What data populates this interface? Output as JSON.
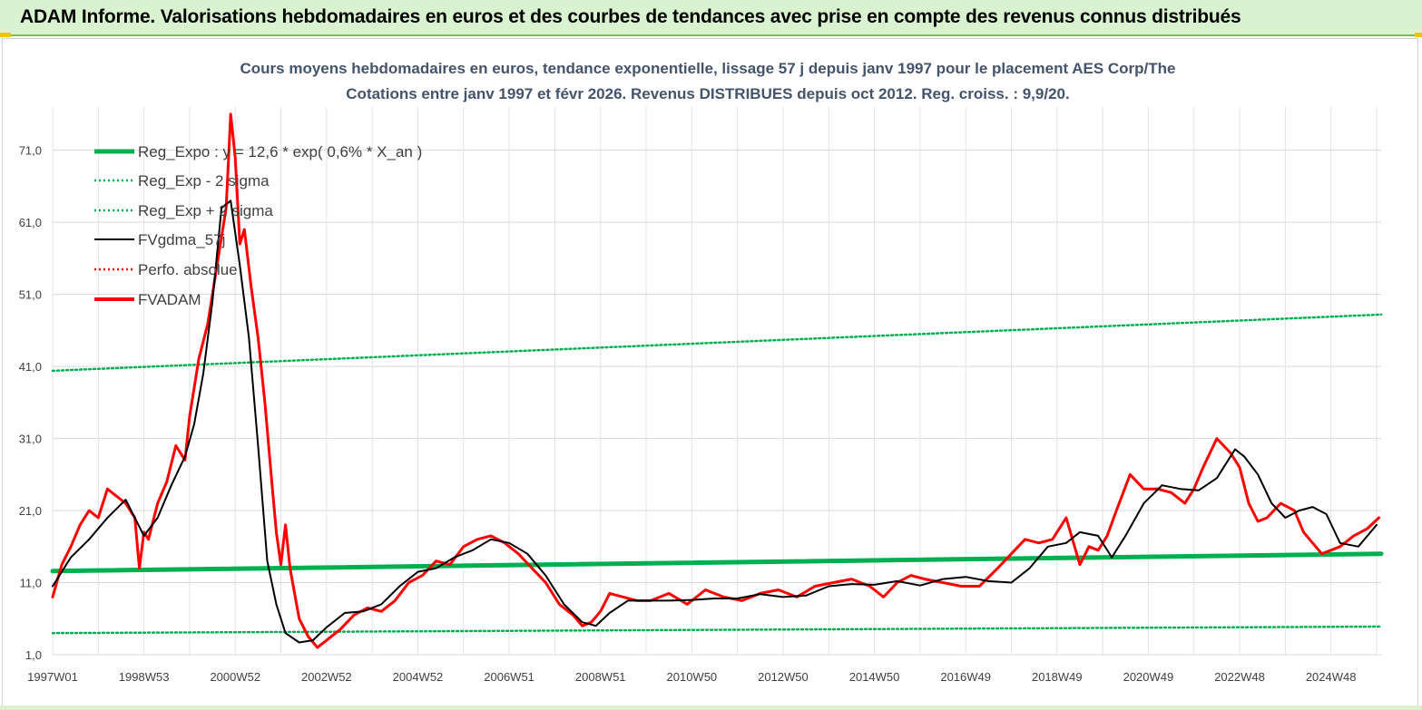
{
  "header": {
    "title": "ADAM Informe. Valorisations hebdomadaires en euros et des courbes de tendances avec prise en compte des revenus connus distribués"
  },
  "chart_data": {
    "type": "line",
    "title_line1": "Cours moyens hebdomadaires en euros, tendance exponentielle, lissage 57 j depuis janv 1997 pour le placement AES Corp/The",
    "title_line2": "Cotations entre janv 1997 et févr 2026. Revenus DISTRIBUES depuis oct 2012. Reg. croiss. : 9,9/20.",
    "ylim": [
      1,
      77
    ],
    "y_ticks": [
      "71,0",
      "61,0",
      "51,0",
      "41,0",
      "31,0",
      "21,0",
      "11,0",
      "1,0"
    ],
    "x_ticks": [
      "1997W01",
      "1998W53",
      "2000W52",
      "2002W52",
      "2004W52",
      "2006W51",
      "2008W51",
      "2010W50",
      "2012W50",
      "2014W50",
      "2016W49",
      "2018W49",
      "2020W49",
      "2022W48",
      "2024W48"
    ],
    "x_range_years": [
      1997.0,
      2026.1
    ],
    "grid": true,
    "legend_position": "top-left",
    "series": [
      {
        "name": "Reg_Expo : y = 12,6 * exp( 0,6% *  X_an )",
        "color": "#00b050",
        "style": "solid-thick",
        "x": [
          1997.0,
          2026.1
        ],
        "y": [
          12.6,
          15.0
        ]
      },
      {
        "name": "Reg_Exp - 2 sigma",
        "color": "#00b050",
        "style": "dotted",
        "x": [
          1997.0,
          2026.1
        ],
        "y": [
          4.0,
          4.9
        ]
      },
      {
        "name": "Reg_Exp + 2 sigma",
        "color": "#00b050",
        "style": "dotted",
        "x": [
          1997.0,
          2026.1
        ],
        "y": [
          40.4,
          48.2
        ]
      },
      {
        "name": "FVgdma_57j",
        "color": "#000000",
        "style": "solid",
        "x": [
          1997.0,
          1997.4,
          1997.8,
          1998.2,
          1998.6,
          1999.0,
          1999.3,
          1999.6,
          1999.9,
          2000.1,
          2000.3,
          2000.5,
          2000.7,
          2000.9,
          2001.1,
          2001.3,
          2001.5,
          2001.7,
          2001.9,
          2002.1,
          2002.4,
          2002.7,
          2003.0,
          2003.4,
          2003.8,
          2004.2,
          2004.6,
          2005.0,
          2005.4,
          2005.8,
          2006.2,
          2006.6,
          2007.0,
          2007.4,
          2007.8,
          2008.2,
          2008.6,
          2008.9,
          2009.2,
          2009.6,
          2010.0,
          2010.5,
          2011.0,
          2011.5,
          2012.0,
          2012.5,
          2013.0,
          2013.5,
          2014.0,
          2014.5,
          2015.0,
          2015.5,
          2016.0,
          2016.5,
          2017.0,
          2017.5,
          2018.0,
          2018.4,
          2018.8,
          2019.2,
          2019.5,
          2019.9,
          2020.2,
          2020.5,
          2020.9,
          2021.3,
          2021.7,
          2022.1,
          2022.5,
          2022.9,
          2023.1,
          2023.4,
          2023.7,
          2024.0,
          2024.3,
          2024.6,
          2024.9,
          2025.2,
          2025.6,
          2026.0
        ],
        "y": [
          10.5,
          14.5,
          17.0,
          20.0,
          22.5,
          17.5,
          20.0,
          24.5,
          28.5,
          33.0,
          40.0,
          50.0,
          63.0,
          64.0,
          55.0,
          45.0,
          30.0,
          14.0,
          8.0,
          4.0,
          2.7,
          3.0,
          4.8,
          6.8,
          7.0,
          8.0,
          10.5,
          12.5,
          13.0,
          14.5,
          15.5,
          17.0,
          16.5,
          15.0,
          12.0,
          8.0,
          5.5,
          5.0,
          6.8,
          8.5,
          8.5,
          8.5,
          8.6,
          8.8,
          8.8,
          9.4,
          9.0,
          9.2,
          10.5,
          10.8,
          10.7,
          11.2,
          10.6,
          11.5,
          11.8,
          11.2,
          11.0,
          13.0,
          16.0,
          16.5,
          18.0,
          17.5,
          14.5,
          17.5,
          22.0,
          24.5,
          24.0,
          23.8,
          25.5,
          29.5,
          28.5,
          26.0,
          22.0,
          20.0,
          21.0,
          21.5,
          20.5,
          16.5,
          16.0,
          19.0
        ]
      },
      {
        "name": "Perfo. absolue",
        "color": "#ff0000",
        "style": "dotted",
        "x": [],
        "y": []
      },
      {
        "name": "FVADAM",
        "color": "#ff0000",
        "style": "solid-thick",
        "x": [
          1997.0,
          1997.2,
          1997.4,
          1997.6,
          1997.8,
          1998.0,
          1998.2,
          1998.4,
          1998.6,
          1998.8,
          1998.9,
          1999.0,
          1999.1,
          1999.3,
          1999.5,
          1999.7,
          1999.9,
          2000.0,
          2000.2,
          2000.4,
          2000.6,
          2000.8,
          2000.9,
          2001.0,
          2001.1,
          2001.2,
          2001.35,
          2001.5,
          2001.65,
          2001.8,
          2001.9,
          2002.0,
          2002.1,
          2002.2,
          2002.4,
          2002.6,
          2002.8,
          2003.0,
          2003.3,
          2003.6,
          2003.9,
          2004.2,
          2004.5,
          2004.8,
          2005.1,
          2005.4,
          2005.7,
          2006.0,
          2006.3,
          2006.6,
          2006.9,
          2007.2,
          2007.5,
          2007.8,
          2008.1,
          2008.4,
          2008.6,
          2008.8,
          2009.0,
          2009.2,
          2009.5,
          2009.8,
          2010.1,
          2010.5,
          2010.9,
          2011.3,
          2011.7,
          2012.1,
          2012.5,
          2012.9,
          2013.3,
          2013.7,
          2014.1,
          2014.5,
          2014.9,
          2015.2,
          2015.5,
          2015.8,
          2016.1,
          2016.5,
          2016.9,
          2017.3,
          2017.7,
          2018.0,
          2018.3,
          2018.6,
          2018.9,
          2019.2,
          2019.5,
          2019.7,
          2019.9,
          2020.1,
          2020.3,
          2020.6,
          2020.9,
          2021.2,
          2021.5,
          2021.8,
          2022.0,
          2022.2,
          2022.5,
          2022.8,
          2023.0,
          2023.2,
          2023.4,
          2023.6,
          2023.9,
          2024.2,
          2024.4,
          2024.6,
          2024.8,
          2025.0,
          2025.2,
          2025.5,
          2025.8,
          2026.05
        ],
        "y": [
          9.0,
          13.5,
          16.0,
          19.0,
          21.0,
          20.0,
          24.0,
          23.0,
          22.0,
          20.0,
          13.0,
          18.0,
          17.0,
          22.0,
          25.0,
          30.0,
          28.0,
          34.0,
          42.0,
          47.0,
          55.0,
          63.0,
          76.0,
          70.0,
          58.0,
          60.0,
          52.0,
          45.0,
          36.0,
          25.0,
          18.0,
          13.5,
          19.0,
          13.0,
          6.0,
          3.5,
          2.0,
          3.0,
          4.5,
          6.5,
          7.5,
          7.0,
          8.5,
          11.0,
          12.0,
          14.0,
          13.5,
          16.0,
          17.0,
          17.5,
          16.5,
          15.0,
          13.0,
          11.0,
          8.0,
          6.5,
          5.0,
          5.5,
          7.0,
          9.5,
          9.0,
          8.5,
          8.5,
          9.5,
          8.0,
          10.0,
          9.0,
          8.5,
          9.5,
          10.0,
          9.0,
          10.5,
          11.0,
          11.5,
          10.5,
          9.0,
          11.0,
          12.0,
          11.5,
          11.0,
          10.5,
          10.5,
          13.0,
          15.0,
          17.0,
          16.5,
          17.0,
          20.0,
          13.5,
          16.0,
          15.5,
          17.5,
          21.0,
          26.0,
          24.0,
          24.0,
          23.5,
          22.0,
          24.0,
          27.0,
          31.0,
          29.0,
          27.0,
          22.0,
          19.5,
          20.0,
          22.0,
          21.0,
          18.0,
          16.5,
          15.0,
          15.5,
          16.0,
          17.5,
          18.5,
          20.0
        ]
      }
    ]
  }
}
